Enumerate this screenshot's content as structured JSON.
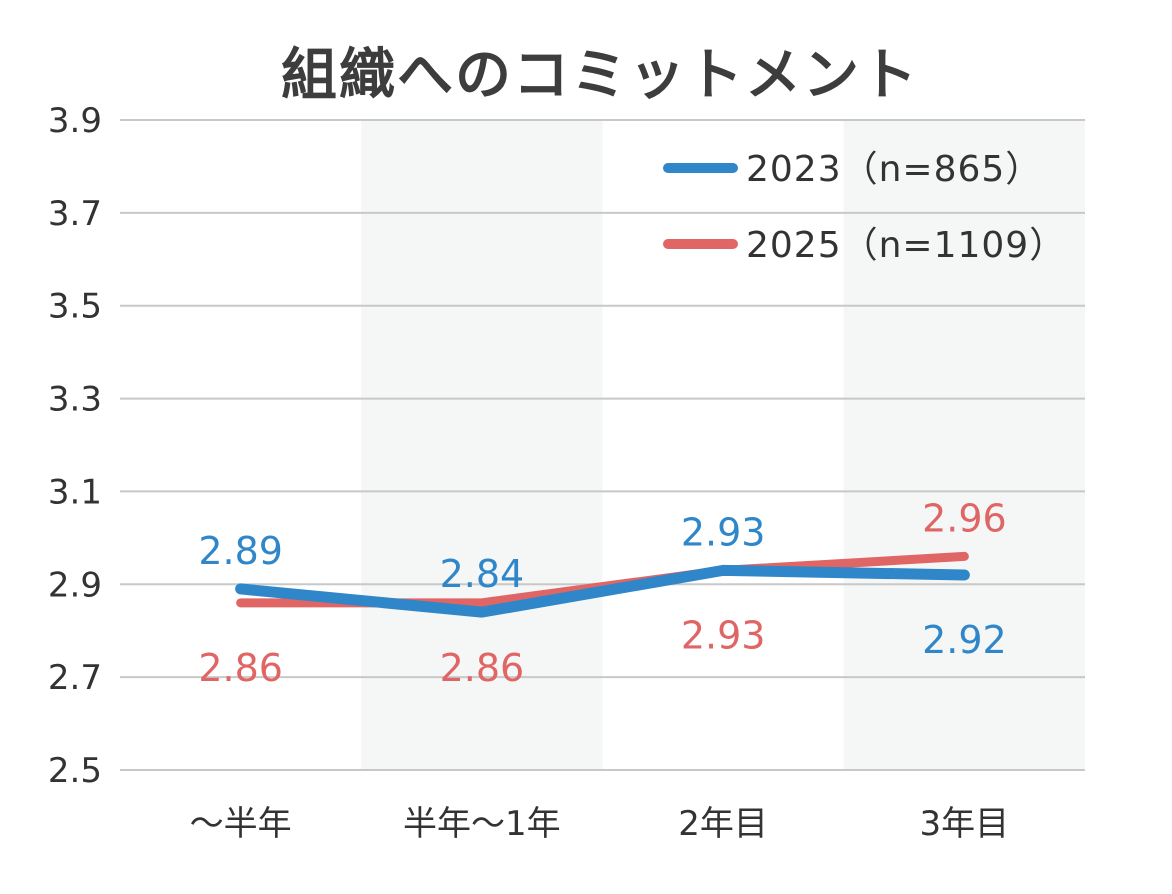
{
  "chart_data": {
    "type": "line",
    "title": "組織へのコミットメント",
    "categories": [
      "〜半年",
      "半年〜1年",
      "2年目",
      "3年目"
    ],
    "ylim": [
      2.5,
      3.9
    ],
    "yticks": [
      "3.9",
      "3.7",
      "3.5",
      "3.3",
      "3.1",
      "2.9",
      "2.7",
      "2.5"
    ],
    "xlabel": "",
    "ylabel": "",
    "legend_position": "top-right",
    "series": [
      {
        "name": "2023（n=865）",
        "color": "#2f86c8",
        "values": [
          2.89,
          2.84,
          2.93,
          2.92
        ],
        "labels": [
          "2.89",
          "2.84",
          "2.93",
          "2.92"
        ],
        "label_side": [
          "above",
          "above",
          "above",
          "below"
        ]
      },
      {
        "name": "2025（n=1109）",
        "color": "#e06666",
        "values": [
          2.86,
          2.86,
          2.93,
          2.96
        ],
        "labels": [
          "2.86",
          "2.86",
          "2.93",
          "2.96"
        ],
        "label_side": [
          "below",
          "below",
          "below",
          "above"
        ]
      }
    ],
    "band_color": "#f5f6f6",
    "grid_color": "#c8c8c8"
  }
}
